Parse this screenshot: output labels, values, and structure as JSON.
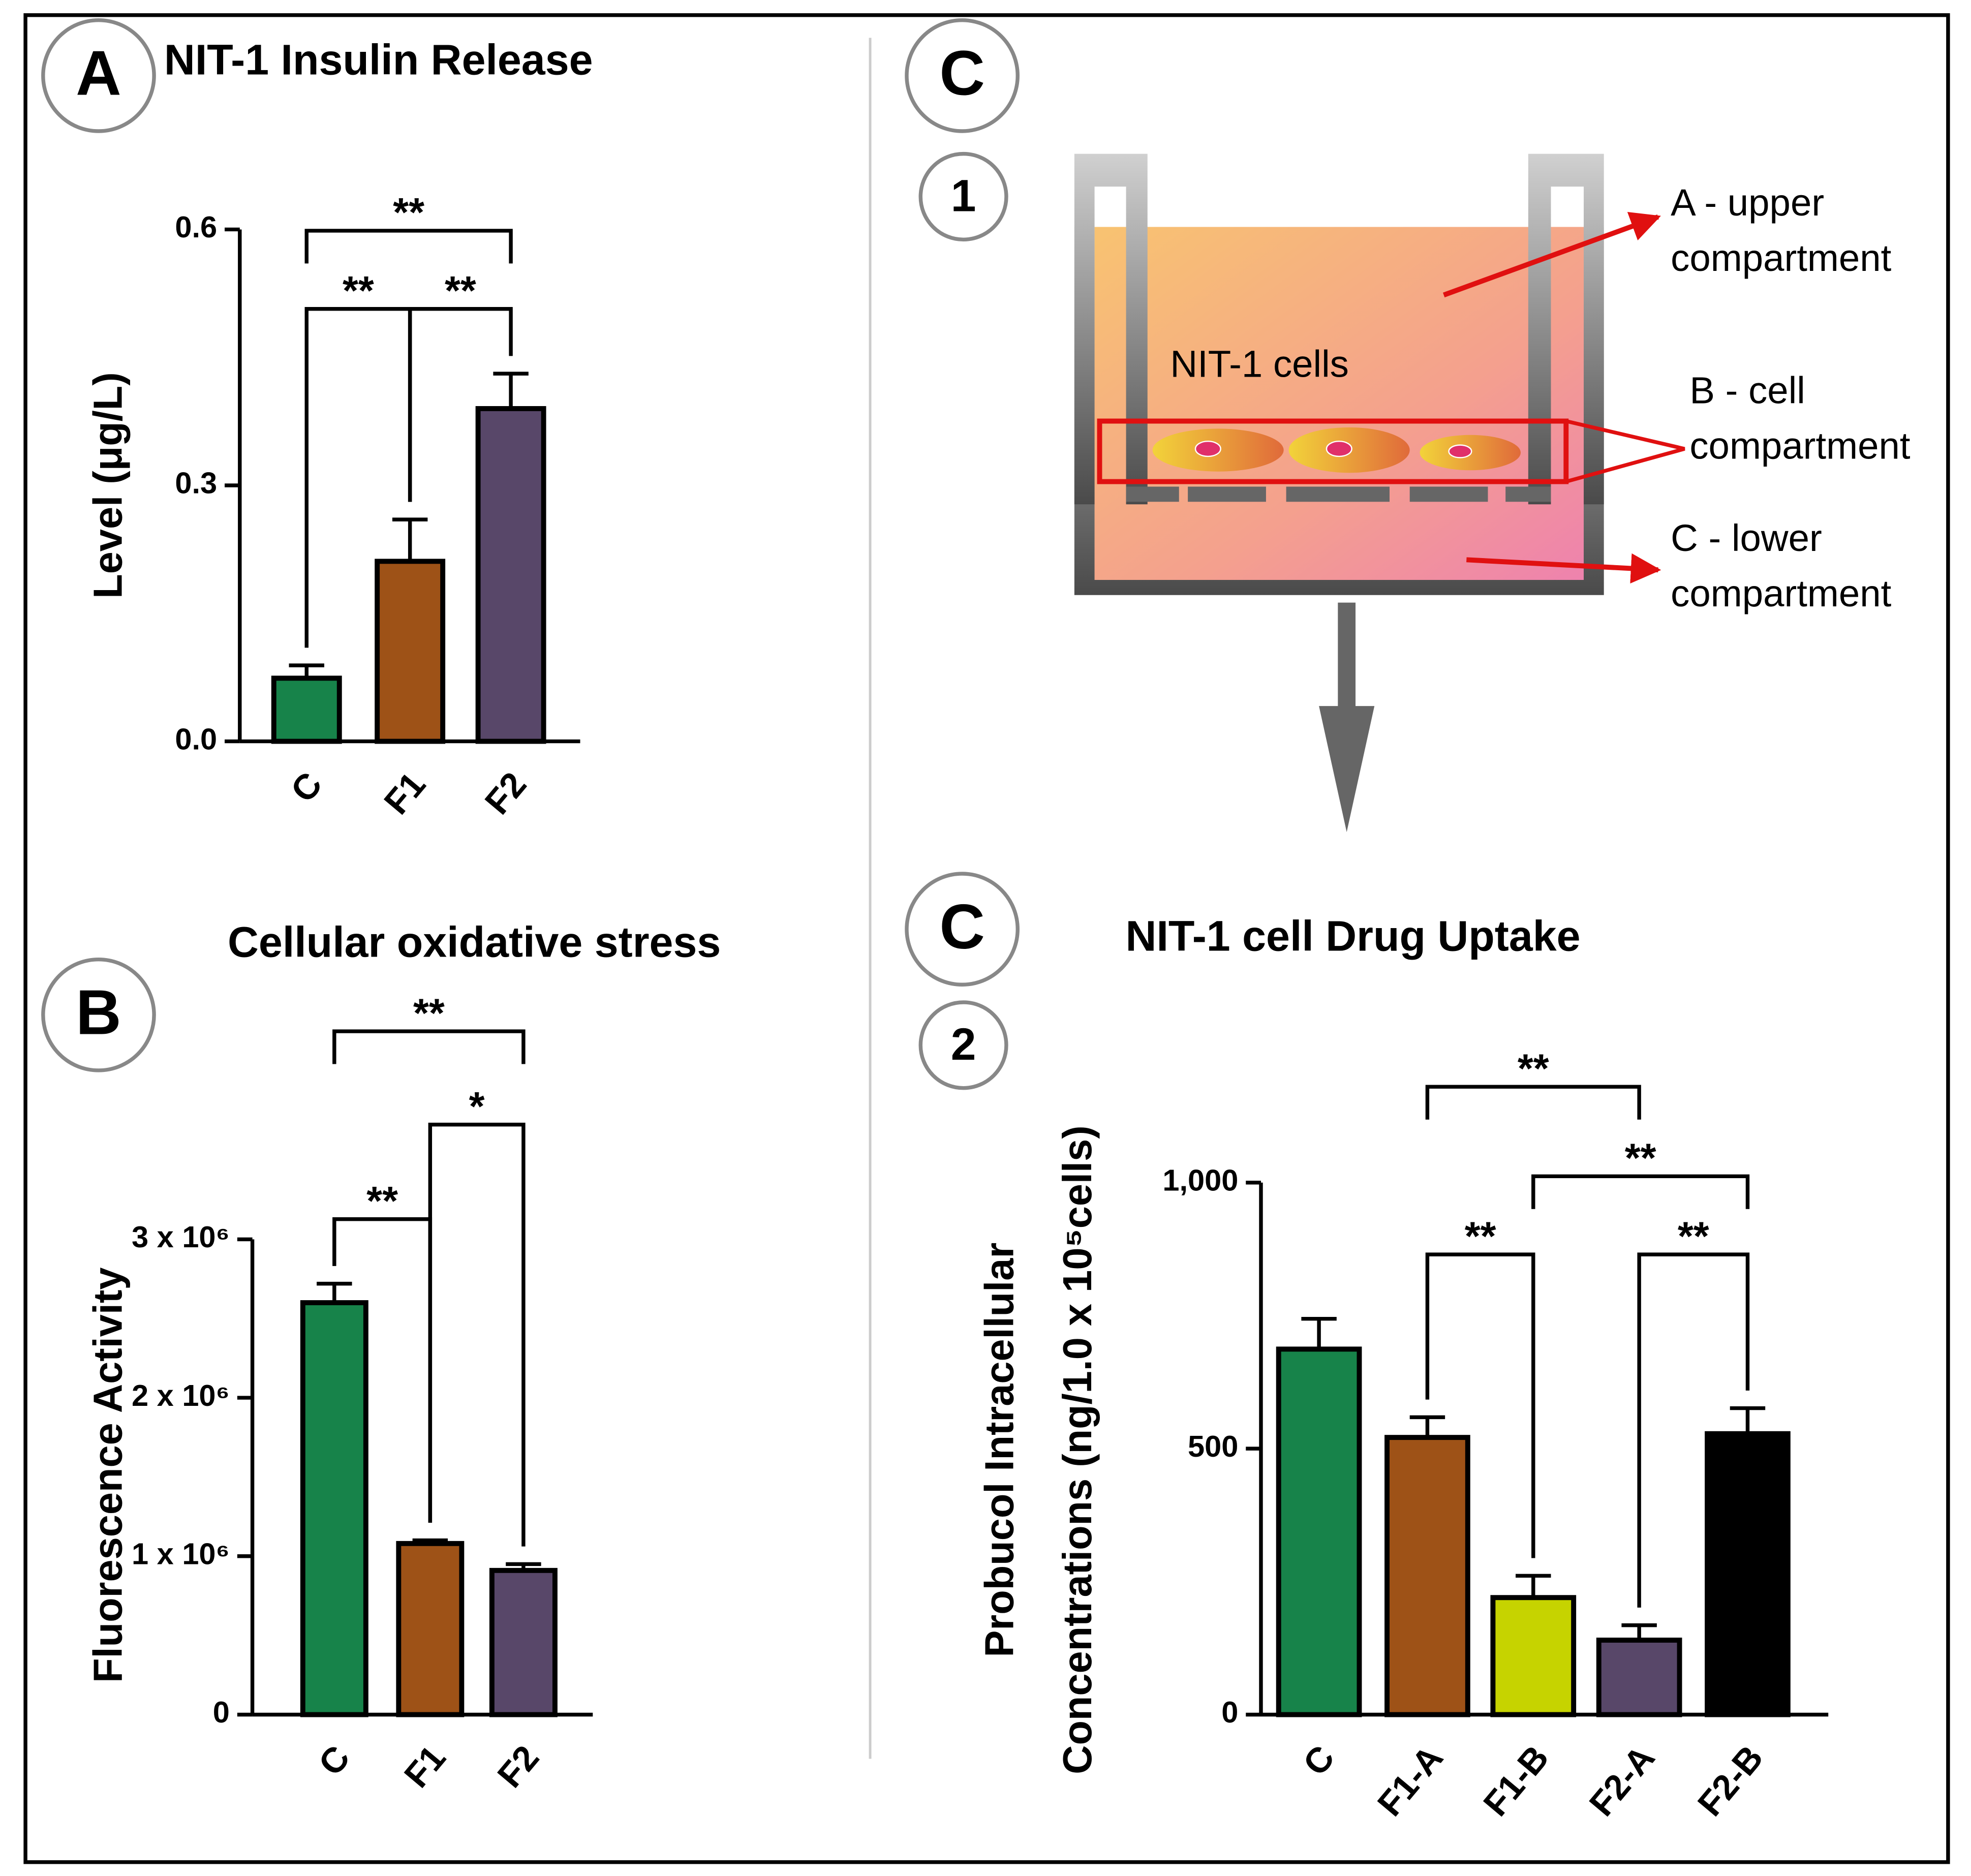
{
  "chart_data": [
    {
      "type": "bar",
      "panel_label": "A",
      "title": "NIT-1 Insulin Release",
      "ylabel": "Level (μg/L)",
      "categories": [
        "C",
        "F1",
        "F2"
      ],
      "values": [
        0.074,
        0.211,
        0.39
      ],
      "errors": [
        0.015,
        0.049,
        0.041
      ],
      "colors": [
        "#17834a",
        "#9e5217",
        "#584769"
      ],
      "ylim": [
        0,
        0.6
      ],
      "yticks": [
        {
          "value": 0,
          "label": "0.0"
        },
        0.3,
        0.6
      ],
      "significance": [
        {
          "pair": [
            "C",
            "F2"
          ],
          "label": "**"
        },
        {
          "pair": [
            "C",
            "F1"
          ],
          "label": "**"
        },
        {
          "pair": [
            "F1",
            "F2"
          ],
          "label": "**"
        }
      ]
    },
    {
      "type": "bar",
      "panel_label": "B",
      "title": "Cellular oxidative stress",
      "ylabel": "Fluorescence Activity",
      "categories": [
        "C",
        "F1",
        "F2"
      ],
      "values": [
        2600000,
        1080000,
        910000
      ],
      "errors": [
        120000,
        20000,
        40000
      ],
      "colors": [
        "#17834a",
        "#9e5217",
        "#584769"
      ],
      "ylim": [
        0,
        3000000
      ],
      "yticks": [
        0,
        {
          "value": 1000000,
          "label": "1 x 10⁶"
        },
        {
          "value": 2000000,
          "label": "2 x 10⁶"
        },
        {
          "value": 3000000,
          "label": "3 x 10⁶"
        }
      ],
      "significance": [
        {
          "pair": [
            "C",
            "F2"
          ],
          "label": "**"
        },
        {
          "pair": [
            "F1",
            "F2"
          ],
          "label": "*"
        },
        {
          "pair": [
            "C",
            "F1"
          ],
          "label": "**"
        }
      ]
    },
    {
      "type": "bar",
      "panel_label": "C",
      "step_label": "2",
      "title": "NIT-1 cell Drug Uptake",
      "ylabel": [
        "Probucol Intracellular",
        "Concentrations (ng/1.0 x 10⁵cells)"
      ],
      "categories": [
        "C",
        "F1-A",
        "F1-B",
        "F2-A",
        "F2-B"
      ],
      "values": [
        687,
        521,
        220,
        140,
        528
      ],
      "errors": [
        57,
        38,
        41,
        28,
        48
      ],
      "colors": [
        "#17834a",
        "#9e5217",
        "#c6d300",
        "#584769",
        "#000000"
      ],
      "ylim": [
        0,
        1000
      ],
      "yticks": [
        0,
        500,
        {
          "value": 1000,
          "label": "1,000"
        }
      ],
      "significance": [
        {
          "pair": [
            "F1-A",
            "F2-A"
          ],
          "label": "**"
        },
        {
          "pair": [
            "F1-B",
            "F2-B"
          ],
          "label": "**"
        },
        {
          "pair": [
            "F1-A",
            "F1-B"
          ],
          "label": "**"
        },
        {
          "pair": [
            "F2-A",
            "F2-B"
          ],
          "label": "**"
        }
      ]
    }
  ],
  "diagram": {
    "panel_label": "C",
    "step_label": "1",
    "cells_label": "NIT-1 cells",
    "compartments": [
      [
        "A - upper",
        "compartment"
      ],
      [
        "B - cell",
        "compartment"
      ],
      [
        "C - lower",
        "compartment"
      ]
    ]
  }
}
